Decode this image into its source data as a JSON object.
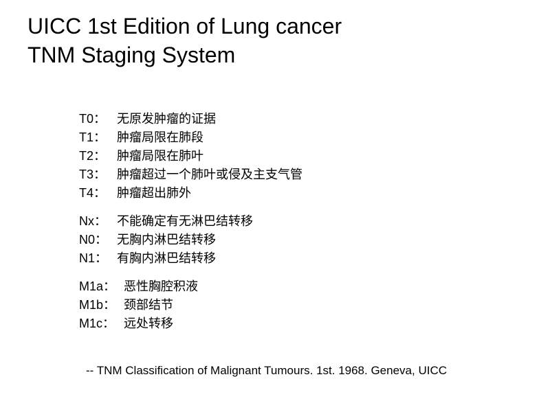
{
  "title_line1": "UICC 1st Edition of Lung cancer",
  "title_line2": "TNM Staging System",
  "t_stages": [
    {
      "code": "T0：",
      "desc": "无原发肿瘤的证据"
    },
    {
      "code": "T1：",
      "desc": "肿瘤局限在肺段"
    },
    {
      "code": "T2：",
      "desc": "肿瘤局限在肺叶"
    },
    {
      "code": "T3：",
      "desc": "肿瘤超过一个肺叶或侵及主支气管"
    },
    {
      "code": "T4：",
      "desc": "肿瘤超出肺外"
    }
  ],
  "n_stages": [
    {
      "code": "Nx：",
      "desc": "不能确定有无淋巴结转移"
    },
    {
      "code": "N0：",
      "desc": "无胸内淋巴结转移"
    },
    {
      "code": "N1：",
      "desc": "有胸内淋巴结转移"
    }
  ],
  "m_stages": [
    {
      "code": "M1a：",
      "desc": "恶性胸腔积液"
    },
    {
      "code": "M1b：",
      "desc": "颈部结节"
    },
    {
      "code": "M1c：",
      "desc": "远处转移"
    }
  ],
  "citation": "-- TNM Classification of Malignant Tumours. 1st. 1968. Geneva, UICC",
  "styling": {
    "background_color": "#ffffff",
    "text_color": "#000000",
    "title_fontsize": 32,
    "body_fontsize": 18,
    "citation_fontsize": 17,
    "font_family": "Microsoft YaHei",
    "code_column_width": 55,
    "m_code_column_width": 65
  }
}
